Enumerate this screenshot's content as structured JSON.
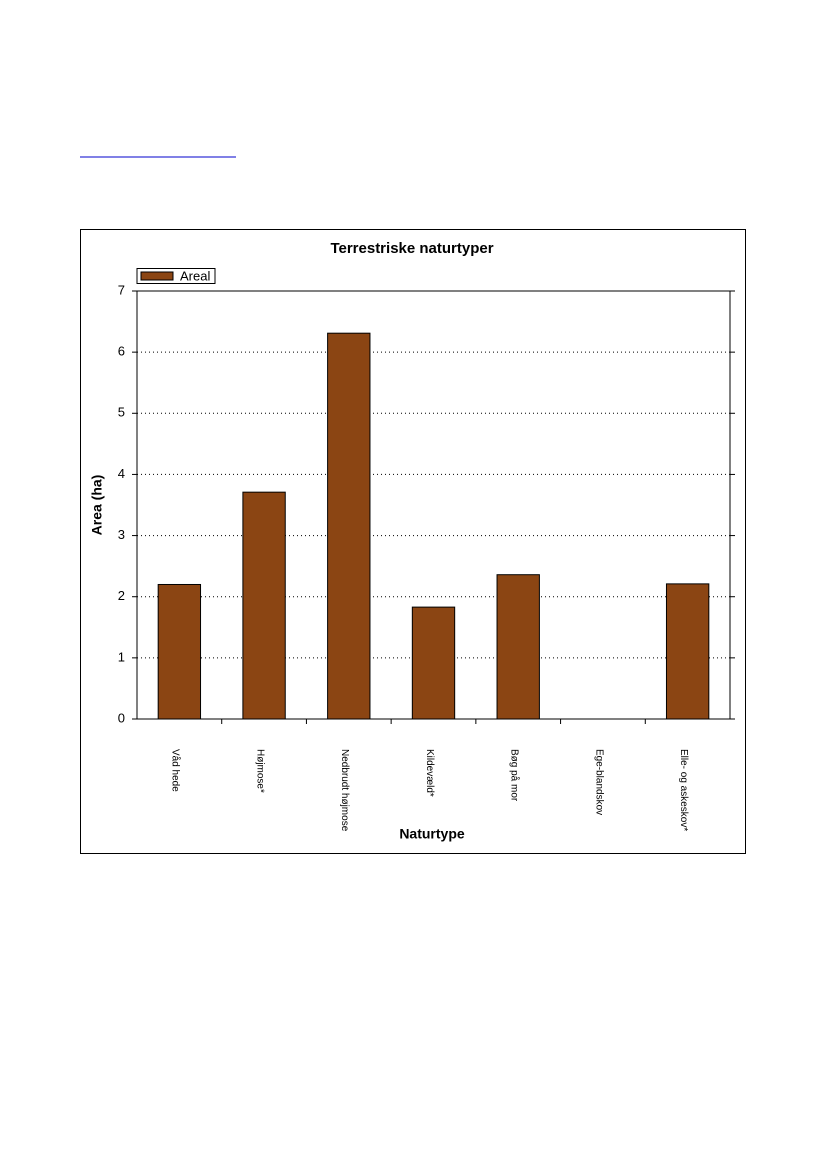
{
  "chart_data": {
    "type": "bar",
    "title": "Terrestriske naturtyper",
    "x_label": "Naturtype",
    "y_label": "Area (ha)",
    "categories": [
      "Våd hede",
      "Højmose*",
      "Nedbrudt højmose",
      "Kildevæld*",
      "Bøg på mor",
      "Ege-blandskov",
      "Elle- og askeskov*"
    ],
    "series": [
      {
        "name": "Areal",
        "color": "#8b4513",
        "values": [
          2.2,
          3.71,
          6.31,
          1.83,
          2.36,
          0,
          2.21
        ]
      }
    ],
    "ylim": [
      0,
      7
    ],
    "yticks": [
      0,
      1,
      2,
      3,
      4,
      5,
      6,
      7
    ],
    "grid": true,
    "legend": "top-left"
  }
}
